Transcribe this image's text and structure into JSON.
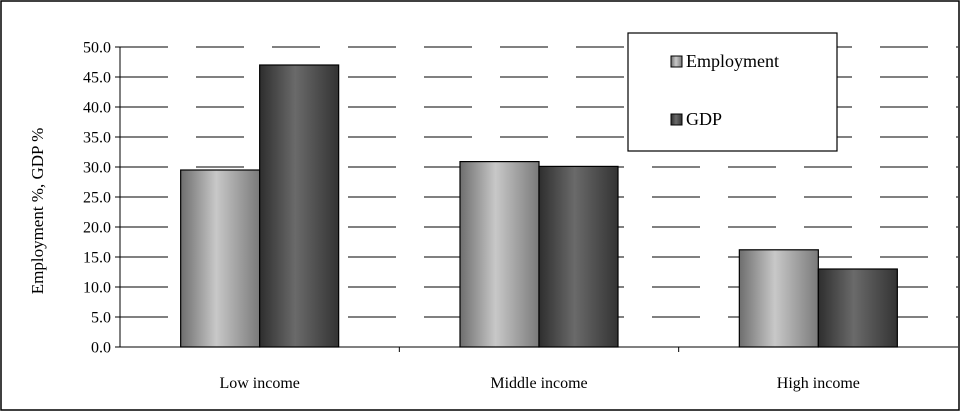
{
  "chart_data": {
    "type": "bar",
    "categories": [
      "Low income",
      "Middle income",
      "High income"
    ],
    "series": [
      {
        "name": "Employment",
        "values": [
          29.5,
          30.9,
          16.2
        ],
        "color": "#9a9a9a"
      },
      {
        "name": "GDP",
        "values": [
          47.0,
          30.1,
          13.0
        ],
        "color": "#4a4a4a"
      }
    ],
    "xlabel": "",
    "ylabel": "Employment %,  GDP %",
    "ylim": [
      0,
      50
    ],
    "yticks": [
      "0.0",
      "5.0",
      "10.0",
      "15.0",
      "20.0",
      "25.0",
      "30.0",
      "35.0",
      "40.0",
      "45.0",
      "50.0"
    ],
    "grid": "dashed horizontal",
    "legend": "top-right"
  }
}
